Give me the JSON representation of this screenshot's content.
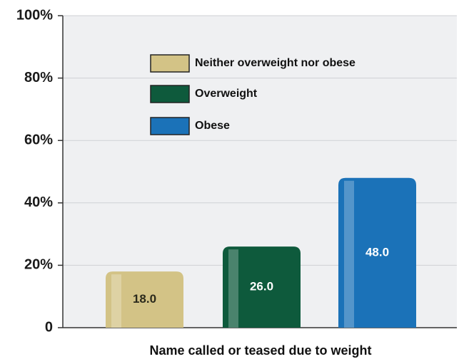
{
  "chart_data": {
    "type": "bar",
    "categories": [
      "Name called or teased due to weight"
    ],
    "series": [
      {
        "name": "Neither overweight nor obese",
        "color": "#d3c386",
        "values": [
          18
        ],
        "value_labels": [
          "18.0"
        ]
      },
      {
        "name": "Overweight",
        "color": "#0e5a3c",
        "values": [
          26
        ],
        "value_labels": [
          "26.0"
        ]
      },
      {
        "name": "Obese",
        "color": "#1b72b8",
        "values": [
          48
        ],
        "value_labels": [
          "48.0"
        ]
      }
    ],
    "ylim": [
      0,
      100
    ],
    "yticks": [
      0,
      {
        "value": 20,
        "label": "20%"
      },
      {
        "value": 40,
        "label": "40%"
      },
      {
        "value": 60,
        "label": "60%"
      },
      {
        "value": 80,
        "label": "80%"
      },
      {
        "value": 100,
        "label": "100%"
      }
    ],
    "grid": true
  }
}
